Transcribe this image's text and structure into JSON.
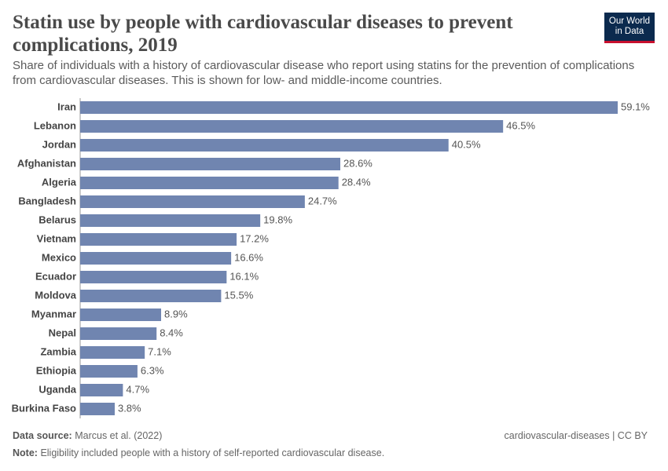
{
  "logo": [
    "Our World",
    "in Data"
  ],
  "chart_data": {
    "type": "bar",
    "orientation": "horizontal",
    "title": "Statin use by people with cardiovascular diseases to prevent complications, 2019",
    "subtitle": "Share of individuals with a history of cardiovascular disease who report using statins for the prevention of complications from cardiovascular diseases. This is shown for low- and middle-income countries.",
    "categories": [
      "Iran",
      "Lebanon",
      "Jordan",
      "Afghanistan",
      "Algeria",
      "Bangladesh",
      "Belarus",
      "Vietnam",
      "Mexico",
      "Ecuador",
      "Moldova",
      "Myanmar",
      "Nepal",
      "Zambia",
      "Ethiopia",
      "Uganda",
      "Burkina Faso"
    ],
    "values": [
      59.1,
      46.5,
      40.5,
      28.6,
      28.4,
      24.7,
      19.8,
      17.2,
      16.6,
      16.1,
      15.5,
      8.9,
      8.4,
      7.1,
      6.3,
      4.7,
      3.8
    ],
    "value_labels": [
      "59.1%",
      "46.5%",
      "40.5%",
      "28.6%",
      "28.4%",
      "24.7%",
      "19.8%",
      "17.2%",
      "16.6%",
      "16.1%",
      "15.5%",
      "8.9%",
      "8.4%",
      "7.1%",
      "6.3%",
      "4.7%",
      "3.8%"
    ],
    "color": "#7085b0",
    "source_label": "Data source:",
    "source": "Marcus et al. (2022)",
    "credit": "cardiovascular-diseases | CC BY",
    "note_label": "Note:",
    "note": "Eligibility included people with a history of self-reported cardiovascular disease."
  }
}
